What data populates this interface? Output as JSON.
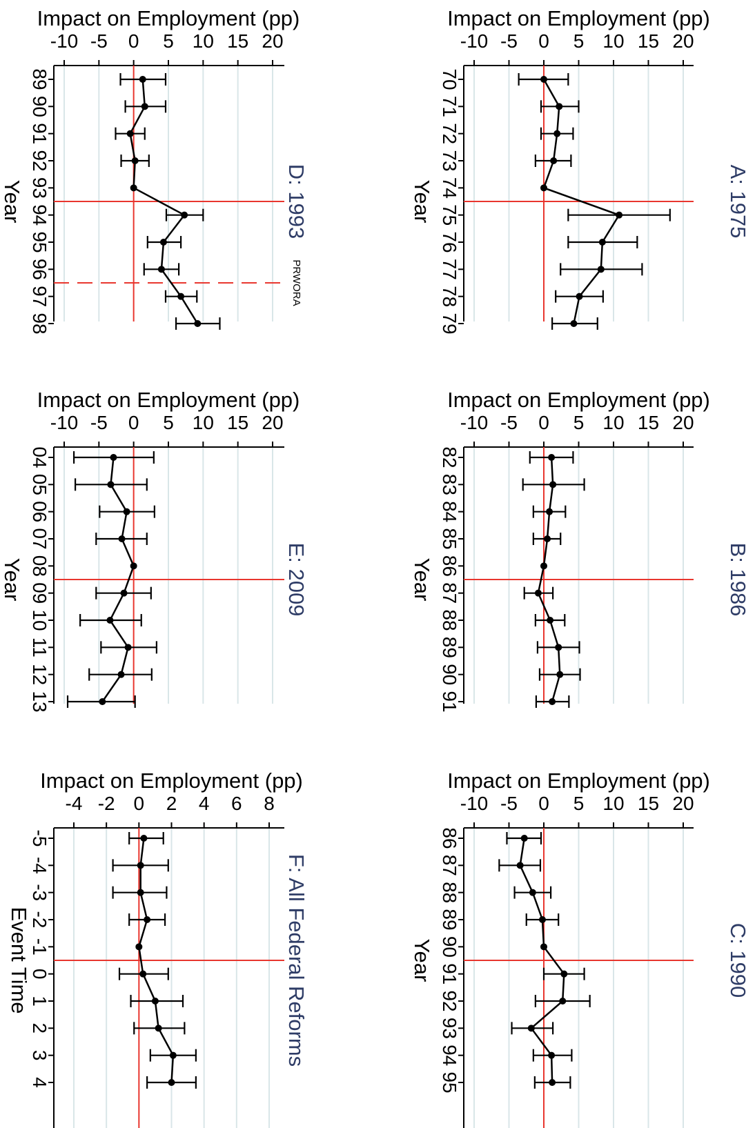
{
  "colors": {
    "point": "#000000",
    "line": "#000000",
    "ref_line": "#e8362e",
    "grid": "#d9e6e8",
    "panel_title": "#2e3c66",
    "axis": "#000000"
  },
  "chart_data": [
    {
      "panel": "top-left",
      "type": "line",
      "title": "D: 1993",
      "xlabel": "Impact on Employment (pp)",
      "ylabel": "Year",
      "xlim": [
        -10,
        20
      ],
      "xticks": [
        -10,
        -5,
        0,
        5,
        10,
        15,
        20
      ],
      "x_tick_labels": [
        "-10",
        "-5",
        "0",
        "5",
        "10",
        "15",
        "20"
      ],
      "categories": [
        "89",
        "90",
        "91",
        "92",
        "93",
        "94",
        "95",
        "96",
        "97",
        "98"
      ],
      "series": [
        {
          "values": [
            1.3,
            1.6,
            -0.5,
            0.2,
            0,
            7.3,
            4.3,
            4.0,
            6.8,
            9.2
          ],
          "ci_low": [
            -1.9,
            -1.2,
            -2.6,
            -1.8,
            0,
            4.7,
            2.0,
            1.5,
            4.6,
            6.1
          ],
          "ci_high": [
            4.6,
            4.6,
            1.6,
            2.2,
            0,
            10.0,
            6.8,
            6.5,
            9.1,
            12.4
          ]
        }
      ],
      "vline_x": 0,
      "reform_line_after": "93",
      "dashed_line_after": "96",
      "dashed_label": "PRWORA",
      "grid": true
    },
    {
      "panel": "top-right",
      "type": "line",
      "title": "A: 1975",
      "xlabel": "Impact on Employment (pp)",
      "ylabel": "Year",
      "xlim": [
        -10,
        20
      ],
      "xticks": [
        -10,
        -5,
        0,
        5,
        10,
        15,
        20
      ],
      "x_tick_labels": [
        "-10",
        "-5",
        "0",
        "5",
        "10",
        "15",
        "20"
      ],
      "categories": [
        "70",
        "71",
        "72",
        "73",
        "74",
        "75",
        "76",
        "77",
        "78",
        "79"
      ],
      "series": [
        {
          "values": [
            0,
            2.2,
            1.9,
            1.4,
            0,
            10.8,
            8.4,
            8.2,
            5.1,
            4.3
          ],
          "ci_low": [
            -3.6,
            -0.4,
            -0.4,
            -1.2,
            0,
            3.5,
            3.5,
            2.4,
            1.7,
            1.2
          ],
          "ci_high": [
            3.5,
            5.0,
            4.2,
            3.9,
            0,
            18.1,
            13.4,
            14.1,
            8.5,
            7.7
          ]
        }
      ],
      "vline_x": 0,
      "reform_line_after": "74",
      "grid": true
    },
    {
      "panel": "middle-left",
      "type": "line",
      "title": "E: 2009",
      "xlabel": "Impact on Employment (pp)",
      "ylabel": "Year",
      "xlim": [
        -10,
        20
      ],
      "xticks": [
        -10,
        -5,
        0,
        5,
        10,
        15,
        20
      ],
      "x_tick_labels": [
        "-10",
        "-5",
        "0",
        "5",
        "10",
        "15",
        "20"
      ],
      "categories": [
        "04",
        "05",
        "06",
        "07",
        "08",
        "09",
        "10",
        "11",
        "12",
        "13"
      ],
      "series": [
        {
          "values": [
            -2.9,
            -3.3,
            -1.0,
            -1.7,
            0,
            -1.4,
            -3.4,
            -0.8,
            -1.8,
            -4.5
          ],
          "ci_low": [
            -8.6,
            -8.4,
            -4.9,
            -5.4,
            0,
            -5.4,
            -7.7,
            -4.7,
            -6.4,
            -9.5
          ],
          "ci_high": [
            2.9,
            1.9,
            3.0,
            1.9,
            0,
            2.5,
            1.1,
            3.3,
            2.6,
            0.2
          ]
        }
      ],
      "vline_x": 0,
      "reform_line_after": "08",
      "grid": true
    },
    {
      "panel": "middle-right",
      "type": "line",
      "title": "B: 1986",
      "xlabel": "Impact on Employment (pp)",
      "ylabel": "Year",
      "xlim": [
        -10,
        20
      ],
      "xticks": [
        -10,
        -5,
        0,
        5,
        10,
        15,
        20
      ],
      "x_tick_labels": [
        "-10",
        "-5",
        "0",
        "5",
        "10",
        "15",
        "20"
      ],
      "categories": [
        "82",
        "83",
        "84",
        "85",
        "86",
        "87",
        "88",
        "89",
        "90",
        "91"
      ],
      "series": [
        {
          "values": [
            1.1,
            1.3,
            0.8,
            0.5,
            0,
            -0.8,
            0.9,
            2.1,
            2.3,
            1.2
          ],
          "ci_low": [
            -2.0,
            -3.0,
            -1.5,
            -1.5,
            0,
            -2.8,
            -1.2,
            -0.9,
            -0.6,
            -1.1
          ],
          "ci_high": [
            4.2,
            5.8,
            3.1,
            2.4,
            0,
            1.3,
            3.0,
            5.1,
            5.2,
            3.6
          ]
        }
      ],
      "vline_x": 0,
      "reform_line_after": "86",
      "grid": true
    },
    {
      "panel": "bottom-left",
      "type": "line",
      "title": "F: All Federal Reforms",
      "xlabel": "Impact on Employment (pp)",
      "ylabel": "Event Time",
      "xlim": [
        -5,
        9
      ],
      "xticks": [
        -4,
        -2,
        0,
        2,
        4,
        6,
        8
      ],
      "x_tick_labels": [
        "-4",
        "-2",
        "0",
        "2",
        "4",
        "6",
        "8"
      ],
      "categories": [
        "-5",
        "-4",
        "-3",
        "-2",
        "-1",
        "0",
        "1",
        "2",
        "3",
        "4"
      ],
      "series": [
        {
          "values": [
            0.3,
            0.1,
            0.1,
            0.5,
            0,
            0.25,
            1.0,
            1.2,
            2.1,
            2.0
          ],
          "ci_low": [
            -0.6,
            -1.6,
            -1.6,
            -0.6,
            0,
            -1.2,
            -0.5,
            -0.3,
            0.7,
            0.5
          ],
          "ci_high": [
            1.5,
            1.8,
            1.7,
            1.6,
            0,
            1.8,
            2.7,
            2.8,
            3.5,
            3.5
          ]
        }
      ],
      "vline_x": 0,
      "reform_line_after": "-1",
      "grid": true
    },
    {
      "panel": "bottom-right",
      "type": "line",
      "title": "C: 1990",
      "xlabel": "Impact on Employment (pp)",
      "ylabel": "Year",
      "xlim": [
        -10,
        20
      ],
      "xticks": [
        -10,
        -5,
        0,
        5,
        10,
        15,
        20
      ],
      "x_tick_labels": [
        "-10",
        "-5",
        "0",
        "5",
        "10",
        "15",
        "20"
      ],
      "categories": [
        "86",
        "87",
        "88",
        "89",
        "90",
        "91",
        "92",
        "93",
        "94",
        "95"
      ],
      "series": [
        {
          "values": [
            -2.8,
            -3.4,
            -1.6,
            -0.2,
            0,
            2.9,
            2.7,
            -1.8,
            1.1,
            1.2
          ],
          "ci_low": [
            -5.3,
            -6.4,
            -4.2,
            -2.5,
            0,
            0,
            -1.2,
            -4.6,
            -1.5,
            -1.3
          ],
          "ci_high": [
            -0.4,
            -0.5,
            1.0,
            2.1,
            0,
            5.8,
            6.6,
            1.3,
            4.0,
            3.8
          ]
        }
      ],
      "vline_x": 0,
      "reform_line_after": "90",
      "grid": true
    }
  ]
}
